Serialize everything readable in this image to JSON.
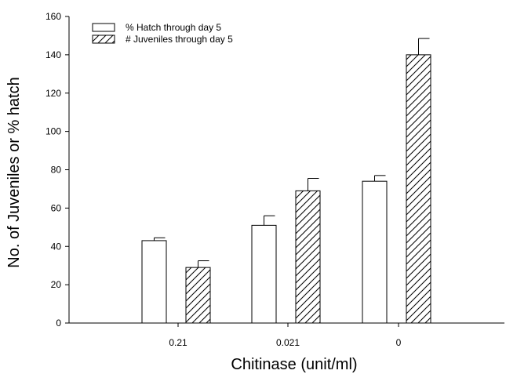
{
  "chart_data": {
    "type": "bar",
    "xlabel": "Chitinase (unit/ml)",
    "ylabel": "No. of Juveniles or % hatch",
    "ylim": [
      0,
      160
    ],
    "yticks": [
      "0",
      "20",
      "40",
      "60",
      "80",
      "100",
      "120",
      "140",
      "160"
    ],
    "categories": [
      "0.21",
      "0.021",
      "0"
    ],
    "series": [
      {
        "name": "% Hatch through day 5",
        "fill": "open",
        "values": [
          43,
          51,
          74
        ],
        "errors": [
          1.5,
          5,
          3
        ]
      },
      {
        "name": "# Juveniles through day 5",
        "fill": "hatched",
        "values": [
          29,
          69,
          140
        ],
        "errors": [
          3.5,
          6.5,
          8.5
        ]
      }
    ],
    "legend_position": "top-left",
    "grid": false,
    "colors": {
      "bar_edge": "#000000",
      "bar_fill": "#ffffff"
    }
  }
}
